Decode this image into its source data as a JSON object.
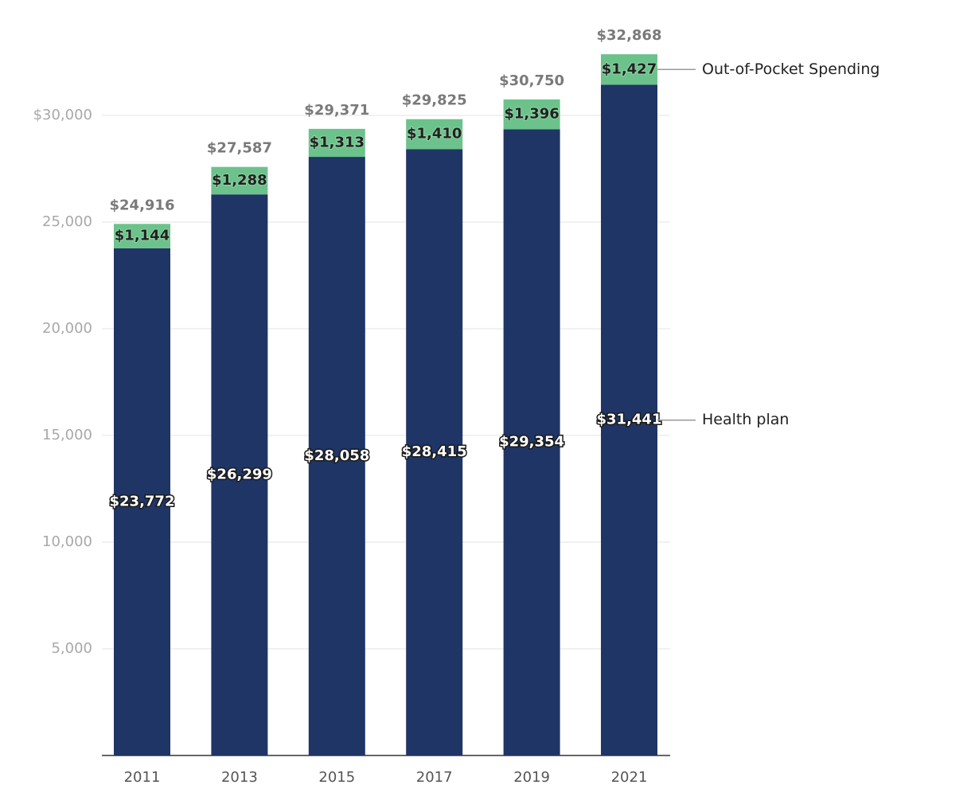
{
  "chart_data": {
    "type": "stacked_bar",
    "categories": [
      "2011",
      "2013",
      "2015",
      "2017",
      "2019",
      "2021"
    ],
    "series": [
      {
        "name": "Health plan",
        "color": "#1f3566",
        "values": [
          23772,
          26299,
          28058,
          28415,
          29354,
          31441
        ],
        "value_labels": [
          "$23,772",
          "$26,299",
          "$28,058",
          "$28,415",
          "$29,354",
          "$31,441"
        ]
      },
      {
        "name": "Out-of-Pocket Spending",
        "color": "#6cc28b",
        "values": [
          1144,
          1288,
          1313,
          1410,
          1396,
          1427
        ],
        "value_labels": [
          "$1,144",
          "$1,288",
          "$1,313",
          "$1,410",
          "$1,396",
          "$1,427"
        ]
      }
    ],
    "totals": [
      24916,
      27587,
      29371,
      29825,
      30750,
      32868
    ],
    "total_labels": [
      "$24,916",
      "$27,587",
      "$29,371",
      "$29,825",
      "$30,750",
      "$32,868"
    ],
    "ylim": [
      0,
      33000
    ],
    "yticks": [
      {
        "value": 5000,
        "label": "5,000"
      },
      {
        "value": 10000,
        "label": "10,000"
      },
      {
        "value": 15000,
        "label": "15,000"
      },
      {
        "value": 20000,
        "label": "20,000"
      },
      {
        "value": 25000,
        "label": "25,000"
      },
      {
        "value": 30000,
        "label": "$30,000"
      }
    ],
    "grid": true
  }
}
